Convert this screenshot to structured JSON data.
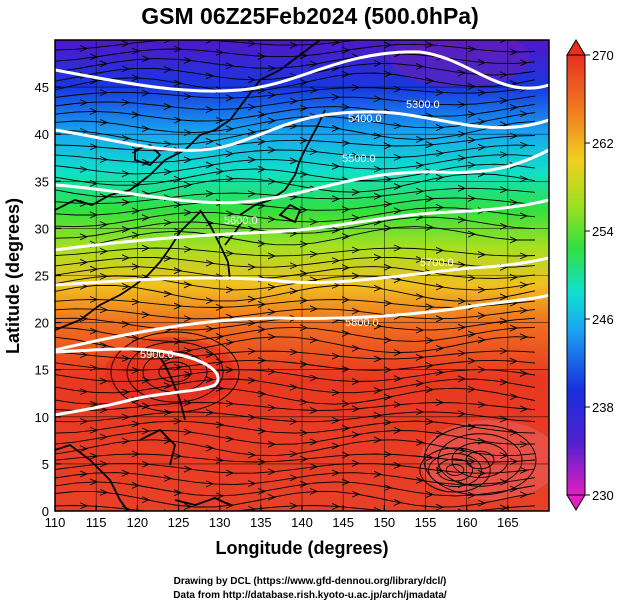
{
  "title": "GSM 06Z25Feb2024 (500.0hPa)",
  "xlabel": "Longitude (degrees)",
  "ylabel": "Latitude  (degrees)",
  "x_ticks": [
    "110",
    "115",
    "120",
    "125",
    "130",
    "135",
    "140",
    "145",
    "150",
    "155",
    "160",
    "165"
  ],
  "y_ticks": [
    "0",
    "5",
    "10",
    "15",
    "20",
    "25",
    "30",
    "35",
    "40",
    "45"
  ],
  "colorbar": {
    "ticks": [
      "270",
      "262",
      "254",
      "246",
      "238",
      "230"
    ],
    "range": [
      230,
      270
    ],
    "stops": [
      "#e020c0",
      "#5020d0",
      "#1830e0",
      "#1aa8f0",
      "#10e0d0",
      "#30e040",
      "#a0e020",
      "#f0d020",
      "#f07820",
      "#e83020"
    ]
  },
  "contours": [
    {
      "label": "5300.0"
    },
    {
      "label": "5400.0"
    },
    {
      "label": "5500.0"
    },
    {
      "label": "5600.0"
    },
    {
      "label": "5700.0"
    },
    {
      "label": "5800.0"
    },
    {
      "label": "5900.0"
    }
  ],
  "credits": {
    "line1": "Drawing by DCL (https://www.gfd-dennou.org/library/dcl/)",
    "line2": "Data from http://database.rish.kyoto-u.ac.jp/arch/jmadata/"
  },
  "colors": {
    "contour": "#ffffff",
    "streamline": "#000000",
    "coast": "#000000"
  }
}
